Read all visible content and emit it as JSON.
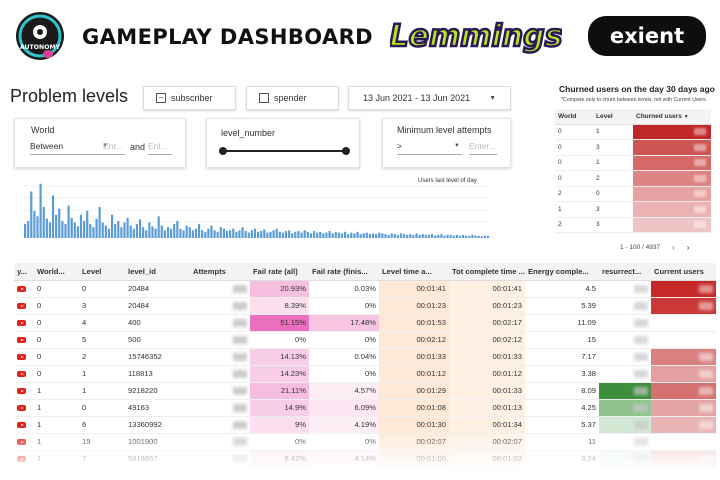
{
  "header": {
    "brand_left": "AUTONOMY",
    "title": "GAMEPLAY DASHBOARD",
    "brand_center": "Lemmings",
    "brand_right": "exient"
  },
  "section_title": "Problem levels",
  "filters": {
    "subscriber_label": "subscriber",
    "spender_label": "spender",
    "date_range": "13 Jun 2021 - 13 Jun 2021",
    "world": {
      "label": "World",
      "operator": "Between",
      "from_placeholder": "Ent...",
      "and_label": "and",
      "to_placeholder": "Ent..."
    },
    "level_number": {
      "label": "level_number"
    },
    "min_attempts": {
      "label": "Minimum level attempts",
      "operator": ">",
      "placeholder": "Enter..."
    }
  },
  "sparkline": {
    "label": "Users last level of day"
  },
  "chart_data": {
    "type": "bar",
    "title": "",
    "series": [
      {
        "name": "Users last level of day",
        "values": [
          18,
          22,
          60,
          35,
          28,
          70,
          40,
          25,
          20,
          55,
          30,
          38,
          22,
          18,
          42,
          26,
          20,
          15,
          30,
          22,
          35,
          18,
          14,
          25,
          40,
          20,
          16,
          12,
          30,
          18,
          22,
          14,
          20,
          26,
          16,
          12,
          18,
          24,
          14,
          10,
          20,
          15,
          12,
          28,
          16,
          10,
          14,
          12,
          18,
          22,
          12,
          10,
          16,
          14,
          10,
          12,
          18,
          10,
          8,
          12,
          16,
          10,
          8,
          14,
          12,
          9,
          10,
          12,
          8,
          10,
          14,
          9,
          7,
          10,
          12,
          8,
          9,
          11,
          7,
          8,
          10,
          12,
          8,
          7,
          9,
          10,
          6,
          8,
          9,
          7,
          10,
          8,
          6,
          9,
          7,
          8,
          6,
          7,
          9,
          6,
          8,
          7,
          6,
          8,
          5,
          7,
          6,
          8,
          5,
          6,
          7,
          5,
          6,
          5,
          7,
          6,
          5,
          4,
          6,
          5,
          4,
          6,
          5,
          4,
          5,
          4,
          6,
          4,
          5,
          4,
          4,
          5,
          3,
          4,
          5,
          3,
          4,
          4,
          3,
          4,
          3,
          4,
          3,
          3,
          4,
          3,
          3,
          2,
          3,
          3
        ]
      }
    ]
  },
  "churn": {
    "title": "Churned users on the day 30 days ago",
    "note": "*Compare only to churn between levels, not with Current Users.",
    "columns": [
      "World",
      "Level",
      "Churned users"
    ],
    "rows": [
      {
        "world": "0",
        "level": "1",
        "heat": "#c02828"
      },
      {
        "world": "0",
        "level": "3",
        "heat": "#cf5454"
      },
      {
        "world": "0",
        "level": "1",
        "heat": "#d66868"
      },
      {
        "world": "0",
        "level": "2",
        "heat": "#de8484"
      },
      {
        "world": "2",
        "level": "0",
        "heat": "#e6a2a2"
      },
      {
        "world": "1",
        "level": "3",
        "heat": "#ebb2b2"
      },
      {
        "world": "2",
        "level": "3",
        "heat": "#efc4c4"
      }
    ],
    "pager_text": "1 - 100 / 4937",
    "prev": "‹",
    "next": "›"
  },
  "main_table": {
    "columns": [
      "y...",
      "World...",
      "Level",
      "level_id",
      "Attempts",
      "Fail rate (all)",
      "Fail rate (finis...",
      "Level time a...",
      "Tot complete time ...",
      "Energy comple...",
      "resurrect...",
      "Current users"
    ],
    "rows": [
      {
        "world": "0",
        "level": "0",
        "level_id": "20484",
        "fail_all": "20.93%",
        "fail_fin": "0.03%",
        "time_avg": "00:01:41",
        "tot_time": "00:01:41",
        "energy": "4.5",
        "fa_bg": "#f6bfe0",
        "ff_bg": "#fff",
        "res_bg": "#fff",
        "cur_bg": "#c62828"
      },
      {
        "world": "0",
        "level": "3",
        "level_id": "20484",
        "fail_all": "8.39%",
        "fail_fin": "0%",
        "time_avg": "00:01:23",
        "tot_time": "00:01:23",
        "energy": "5.39",
        "fa_bg": "#fbe0f0",
        "ff_bg": "#fff",
        "res_bg": "#fff",
        "cur_bg": "#cc3838"
      },
      {
        "world": "0",
        "level": "4",
        "level_id": "400",
        "fail_all": "51.15%",
        "fail_fin": "17.48%",
        "time_avg": "00:01:53",
        "tot_time": "00:02:17",
        "energy": "11.09",
        "fa_bg": "#ea6fbc",
        "ff_bg": "#f8c6e2",
        "res_bg": "#fff",
        "cur_bg": "#ffffff"
      },
      {
        "world": "0",
        "level": "5",
        "level_id": "500",
        "fail_all": "0%",
        "fail_fin": "0%",
        "time_avg": "00:02:12",
        "tot_time": "00:02:12",
        "energy": "15",
        "fa_bg": "#ffffff",
        "ff_bg": "#fff",
        "res_bg": "#fff",
        "cur_bg": "#ffffff"
      },
      {
        "world": "0",
        "level": "2",
        "level_id": "15746352",
        "fail_all": "14.13%",
        "fail_fin": "0.04%",
        "time_avg": "00:01:33",
        "tot_time": "00:01:33",
        "energy": "7.17",
        "fa_bg": "#f8cde8",
        "ff_bg": "#fff",
        "res_bg": "#fff",
        "cur_bg": "#d98080"
      },
      {
        "world": "0",
        "level": "1",
        "level_id": "118813",
        "fail_all": "14.23%",
        "fail_fin": "0%",
        "time_avg": "00:01:12",
        "tot_time": "00:01:12",
        "energy": "3.38",
        "fa_bg": "#f8cde8",
        "ff_bg": "#fff",
        "res_bg": "#fff",
        "cur_bg": "#e3a0a0"
      },
      {
        "world": "1",
        "level": "1",
        "level_id": "9218220",
        "fail_all": "21.11%",
        "fail_fin": "4.57%",
        "time_avg": "00:01:29",
        "tot_time": "00:01:33",
        "energy": "8.09",
        "fa_bg": "#f5bddf",
        "ff_bg": "#fdeef6",
        "res_bg": "#3d8f3d",
        "cur_bg": "#d47070"
      },
      {
        "world": "1",
        "level": "0",
        "level_id": "49163",
        "fail_all": "14.9%",
        "fail_fin": "6.09%",
        "time_avg": "00:01:08",
        "tot_time": "00:01:13",
        "energy": "4.25",
        "fa_bg": "#f8cde8",
        "ff_bg": "#fce7f2",
        "res_bg": "#8fc48f",
        "cur_bg": "#e2a4a4"
      },
      {
        "world": "1",
        "level": "6",
        "level_id": "13360992",
        "fail_all": "9%",
        "fail_fin": "4.19%",
        "time_avg": "00:01:30",
        "tot_time": "00:01:34",
        "energy": "5.37",
        "fa_bg": "#fbdff0",
        "ff_bg": "#fdeef6",
        "res_bg": "#d2e8d2",
        "cur_bg": "#e8b4b4"
      },
      {
        "world": "1",
        "level": "19",
        "level_id": "1001900",
        "fail_all": "0%",
        "fail_fin": "0%",
        "time_avg": "00:02:07",
        "tot_time": "00:02:07",
        "energy": "11",
        "fa_bg": "#ffffff",
        "ff_bg": "#fff",
        "res_bg": "#fff",
        "cur_bg": "#ffffff"
      },
      {
        "world": "1",
        "level": "7",
        "level_id": "5818867",
        "fail_all": "6.42%",
        "fail_fin": "4.14%",
        "time_avg": "00:01:00",
        "tot_time": "00:01:02",
        "energy": "3.24",
        "fa_bg": "#fce5f2",
        "ff_bg": "#fdeef6",
        "res_bg": "#e8f3e8",
        "cur_bg": "#f1cccc"
      }
    ]
  }
}
